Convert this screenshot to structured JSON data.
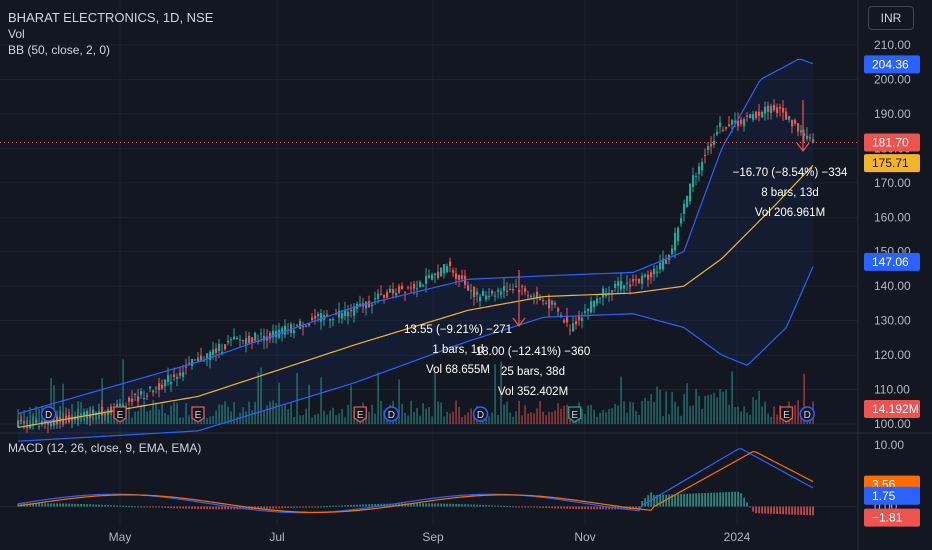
{
  "header": {
    "title": "BHARAT ELECTRONICS, 1D, NSE",
    "vol_label": "Vol",
    "bb_label": "BB (50, close, 2, 0)",
    "macd_label": "MACD (12, 26, close, 9, EMA, EMA)",
    "currency": "INR"
  },
  "colors": {
    "background": "#131722",
    "up": "#26a69a",
    "down": "#ef5350",
    "bb_band": "#2962ff",
    "bb_basis": "#f2b42c",
    "macd_line": "#2962ff",
    "signal_line": "#ff6d00",
    "grid": "#1e222d"
  },
  "chart_data": {
    "type": "candlestick",
    "title": "BHARAT ELECTRONICS, 1D, NSE",
    "x_ticks": [
      "May",
      "Jul",
      "Sep",
      "Nov",
      "2024"
    ],
    "y_ticks": [
      "210.00",
      "200.00",
      "190.00",
      "180.00",
      "170.00",
      "160.00",
      "150.00",
      "140.00",
      "130.00",
      "120.00",
      "110.00",
      "100.00"
    ],
    "ylim": [
      98,
      212
    ],
    "macd_ticks": [
      "10.00",
      "0.00"
    ],
    "price_series_approx": [
      {
        "t": "Apr 1",
        "close": 100
      },
      {
        "t": "Apr 15",
        "close": 101
      },
      {
        "t": "May 1",
        "close": 105
      },
      {
        "t": "May 15",
        "close": 110
      },
      {
        "t": "Jun 1",
        "close": 118
      },
      {
        "t": "Jun 15",
        "close": 124
      },
      {
        "t": "Jul 1",
        "close": 126
      },
      {
        "t": "Jul 15",
        "close": 130
      },
      {
        "t": "Aug 1",
        "close": 133
      },
      {
        "t": "Aug 15",
        "close": 138
      },
      {
        "t": "Sep 1",
        "close": 142
      },
      {
        "t": "Sep 8",
        "close": 146
      },
      {
        "t": "Sep 20",
        "close": 137
      },
      {
        "t": "Oct 5",
        "close": 140
      },
      {
        "t": "Oct 20",
        "close": 134
      },
      {
        "t": "Oct 26",
        "close": 128
      },
      {
        "t": "Nov 10",
        "close": 139
      },
      {
        "t": "Nov 25",
        "close": 142
      },
      {
        "t": "Dec 5",
        "close": 148
      },
      {
        "t": "Dec 15",
        "close": 172
      },
      {
        "t": "Dec 25",
        "close": 186
      },
      {
        "t": "Jan 5",
        "close": 188
      },
      {
        "t": "Jan 15",
        "close": 192
      },
      {
        "t": "Jan 20",
        "close": 190
      },
      {
        "t": "Jan 31",
        "close": 181.7
      }
    ],
    "bb_upper_approx": [
      {
        "t": "Apr 1",
        "v": 103
      },
      {
        "t": "Jun 1",
        "v": 118
      },
      {
        "t": "Aug 1",
        "v": 134
      },
      {
        "t": "Sep 15",
        "v": 142
      },
      {
        "t": "Oct 15",
        "v": 143
      },
      {
        "t": "Nov 20",
        "v": 144
      },
      {
        "t": "Dec 10",
        "v": 150
      },
      {
        "t": "Dec 25",
        "v": 180
      },
      {
        "t": "Jan 10",
        "v": 200
      },
      {
        "t": "Jan 25",
        "v": 206
      },
      {
        "t": "Jan 31",
        "v": 204.36
      }
    ],
    "bb_basis_approx": [
      {
        "t": "Apr 1",
        "v": 99
      },
      {
        "t": "Jun 1",
        "v": 108
      },
      {
        "t": "Aug 1",
        "v": 123
      },
      {
        "t": "Sep 15",
        "v": 133
      },
      {
        "t": "Oct 15",
        "v": 137
      },
      {
        "t": "Nov 20",
        "v": 138
      },
      {
        "t": "Dec 10",
        "v": 140
      },
      {
        "t": "Dec 25",
        "v": 148
      },
      {
        "t": "Jan 15",
        "v": 163
      },
      {
        "t": "Jan 31",
        "v": 175.71
      }
    ],
    "bb_lower_approx": [
      {
        "t": "Apr 1",
        "v": 95
      },
      {
        "t": "Jun 1",
        "v": 98
      },
      {
        "t": "Aug 1",
        "v": 112
      },
      {
        "t": "Sep 15",
        "v": 124
      },
      {
        "t": "Oct 15",
        "v": 131
      },
      {
        "t": "Nov 20",
        "v": 132
      },
      {
        "t": "Dec 10",
        "v": 128
      },
      {
        "t": "Dec 25",
        "v": 120
      },
      {
        "t": "Jan 5",
        "v": 117
      },
      {
        "t": "Jan 20",
        "v": 128
      },
      {
        "t": "Jan 31",
        "v": 147.06
      }
    ],
    "price_labels": [
      {
        "text": "204.36",
        "role": "bb-upper",
        "color": "#2962ff"
      },
      {
        "text": "181.70",
        "role": "last-price",
        "color": "#ef5350"
      },
      {
        "text": "175.71",
        "role": "bb-basis",
        "color": "#f2b42c"
      },
      {
        "text": "147.06",
        "role": "bb-lower",
        "color": "#2962ff"
      },
      {
        "text": "14.192M",
        "role": "volume",
        "color": "#ef5350"
      }
    ],
    "macd_labels": [
      {
        "text": "3.56",
        "role": "signal",
        "color": "#ff6d00"
      },
      {
        "text": "1.75",
        "role": "macd",
        "color": "#2962ff"
      },
      {
        "text": "−1.81",
        "role": "histogram",
        "color": "#ef5350"
      }
    ],
    "annotations": [
      {
        "lines": [
          "−16.70 (−8.54%) −334",
          "8 bars, 13d",
          "Vol 206.961M"
        ]
      },
      {
        "lines": [
          "13.55 (−9.21%) −271",
          "1 bars, 1d",
          "Vol 68.655M"
        ]
      },
      {
        "lines": [
          "18.00 (−12.41%) −360",
          "25 bars, 38d",
          "Vol 352.402M"
        ]
      }
    ],
    "event_markers": [
      {
        "t": "Apr 10",
        "label": "D"
      },
      {
        "t": "May 1",
        "label": "E"
      },
      {
        "t": "Jun 1",
        "label": "E"
      },
      {
        "t": "Aug 3",
        "label": "E"
      },
      {
        "t": "Aug 15",
        "label": "D"
      },
      {
        "t": "Sep 20",
        "label": "D"
      },
      {
        "t": "Oct 27",
        "label": "E"
      },
      {
        "t": "Jan 20",
        "label": "E"
      },
      {
        "t": "Jan 28",
        "label": "D"
      }
    ]
  }
}
